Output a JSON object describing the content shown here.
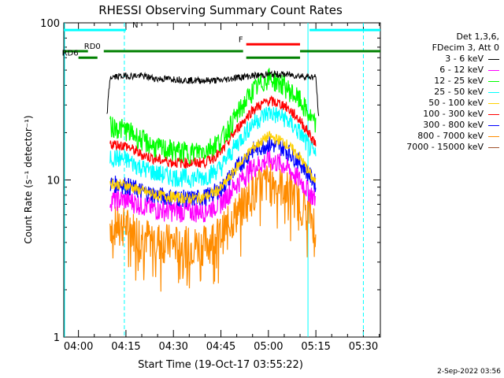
{
  "chart_data": {
    "type": "line",
    "title": "RHESSI Observing Summary Count Rates",
    "xlabel": "Start Time (19-Oct-17 03:55:22)",
    "ylabel": "Count Rate (s⁻¹ detector⁻¹)",
    "y_scale": "log",
    "ylim": [
      1,
      100
    ],
    "x_ticks": [
      "04:00",
      "04:15",
      "04:30",
      "04:45",
      "05:00",
      "05:15",
      "05:30"
    ],
    "y_ticks": [
      "1",
      "10",
      "100"
    ],
    "x_range": [
      "03:55:22",
      "05:35:22"
    ],
    "legend_header": [
      "Det 1,3,6,",
      "FDecim 3, Att 0"
    ],
    "legend_placement": "right",
    "series": [
      {
        "name": "3 - 6 keV",
        "color": "#000000",
        "points": [
          [
            "04:09",
            26
          ],
          [
            "04:10",
            45
          ],
          [
            "04:15",
            46
          ],
          [
            "04:20",
            46
          ],
          [
            "04:25",
            44
          ],
          [
            "04:30",
            44
          ],
          [
            "04:35",
            43
          ],
          [
            "04:40",
            43
          ],
          [
            "04:45",
            43
          ],
          [
            "04:50",
            45
          ],
          [
            "04:55",
            46
          ],
          [
            "05:00",
            47
          ],
          [
            "05:05",
            47
          ],
          [
            "05:10",
            46
          ],
          [
            "05:15",
            45
          ],
          [
            "05:16",
            23
          ]
        ]
      },
      {
        "name": "6 - 12 keV",
        "color": "#ff00ff",
        "points": [
          [
            "04:10",
            7.5
          ],
          [
            "04:15",
            7.5
          ],
          [
            "04:20",
            7.0
          ],
          [
            "04:25",
            6.5
          ],
          [
            "04:30",
            6.4
          ],
          [
            "04:35",
            6.3
          ],
          [
            "04:40",
            6.4
          ],
          [
            "04:45",
            7.2
          ],
          [
            "04:50",
            9.5
          ],
          [
            "04:55",
            12
          ],
          [
            "05:00",
            13.5
          ],
          [
            "05:05",
            12.5
          ],
          [
            "05:10",
            10
          ],
          [
            "05:15",
            7.5
          ]
        ]
      },
      {
        "name": "12 - 25 keV",
        "color": "#00ff00",
        "points": [
          [
            "04:10",
            22
          ],
          [
            "04:15",
            21
          ],
          [
            "04:20",
            18
          ],
          [
            "04:25",
            16
          ],
          [
            "04:30",
            15.5
          ],
          [
            "04:35",
            15
          ],
          [
            "04:40",
            15.5
          ],
          [
            "04:45",
            18
          ],
          [
            "04:50",
            26
          ],
          [
            "04:55",
            37
          ],
          [
            "05:00",
            45
          ],
          [
            "05:05",
            40
          ],
          [
            "05:10",
            32
          ],
          [
            "05:15",
            22
          ]
        ]
      },
      {
        "name": "25 - 50 keV",
        "color": "#00ffff",
        "points": [
          [
            "04:10",
            14
          ],
          [
            "04:15",
            13.5
          ],
          [
            "04:20",
            12
          ],
          [
            "04:25",
            11
          ],
          [
            "04:30",
            10.5
          ],
          [
            "04:35",
            10.3
          ],
          [
            "04:40",
            10.5
          ],
          [
            "04:45",
            12
          ],
          [
            "04:50",
            17
          ],
          [
            "04:55",
            23
          ],
          [
            "05:00",
            27
          ],
          [
            "05:05",
            25
          ],
          [
            "05:10",
            20
          ],
          [
            "05:15",
            14
          ]
        ]
      },
      {
        "name": "50 - 100 keV",
        "color": "#ffd000",
        "points": [
          [
            "04:10",
            9.5
          ],
          [
            "04:15",
            9.3
          ],
          [
            "04:20",
            8.5
          ],
          [
            "04:25",
            8
          ],
          [
            "04:30",
            7.8
          ],
          [
            "04:35",
            7.6
          ],
          [
            "04:40",
            7.8
          ],
          [
            "04:45",
            8.8
          ],
          [
            "04:50",
            12
          ],
          [
            "04:55",
            16
          ],
          [
            "05:00",
            19
          ],
          [
            "05:05",
            17.5
          ],
          [
            "05:10",
            14
          ],
          [
            "05:15",
            9.5
          ]
        ]
      },
      {
        "name": "100 - 300 keV",
        "color": "#ff0000",
        "points": [
          [
            "04:10",
            17
          ],
          [
            "04:15",
            16.5
          ],
          [
            "04:20",
            14.5
          ],
          [
            "04:25",
            13.5
          ],
          [
            "04:30",
            13
          ],
          [
            "04:35",
            12.8
          ],
          [
            "04:40",
            13
          ],
          [
            "04:45",
            15
          ],
          [
            "04:50",
            21
          ],
          [
            "04:55",
            28
          ],
          [
            "05:00",
            32
          ],
          [
            "05:05",
            30
          ],
          [
            "05:10",
            24
          ],
          [
            "05:15",
            17
          ]
        ]
      },
      {
        "name": "300 - 800 keV",
        "color": "#0000ff",
        "points": [
          [
            "04:10",
            9.5
          ],
          [
            "04:15",
            9.3
          ],
          [
            "04:20",
            8.5
          ],
          [
            "04:25",
            8
          ],
          [
            "04:30",
            7.8
          ],
          [
            "04:35",
            7.6
          ],
          [
            "04:40",
            7.8
          ],
          [
            "04:45",
            8.8
          ],
          [
            "04:50",
            12
          ],
          [
            "04:55",
            15.5
          ],
          [
            "05:00",
            17
          ],
          [
            "05:05",
            16
          ],
          [
            "05:10",
            13
          ],
          [
            "05:15",
            9.5
          ]
        ]
      },
      {
        "name": "800 - 7000 keV",
        "color": "#ff8c00",
        "points": [
          [
            "04:10",
            5.3
          ],
          [
            "04:15",
            5.2
          ],
          [
            "04:20",
            4.6
          ],
          [
            "04:25",
            4.2
          ],
          [
            "04:30",
            4.0
          ],
          [
            "04:35",
            3.9
          ],
          [
            "04:40",
            4.0
          ],
          [
            "04:45",
            4.6
          ],
          [
            "04:50",
            6.3
          ],
          [
            "04:55",
            8.5
          ],
          [
            "05:00",
            10
          ],
          [
            "05:05",
            9.2
          ],
          [
            "05:10",
            7.5
          ],
          [
            "05:15",
            5.3
          ]
        ]
      },
      {
        "name": "7000 - 15000 keV",
        "color": "#a0522d",
        "points": []
      }
    ],
    "bars": [
      {
        "label": "N",
        "color": "#00ffff",
        "y": 90,
        "segments": [
          [
            "03:55:22",
            "04:15"
          ],
          [
            "05:13",
            "05:35:22"
          ]
        ]
      },
      {
        "label": "F",
        "color": "#ff0000",
        "y": 73,
        "segments": [
          [
            "04:53",
            "05:10"
          ]
        ]
      },
      {
        "label": "RD0",
        "color": "#008000",
        "y": 66,
        "segments": [
          [
            "03:55:22",
            "04:03"
          ],
          [
            "04:08",
            "04:52"
          ],
          [
            "05:10",
            "05:35:22"
          ]
        ]
      },
      {
        "label": "RD6",
        "color": "#008000",
        "y": 60,
        "segments": [
          [
            "04:00",
            "04:06"
          ],
          [
            "04:53",
            "05:10"
          ]
        ]
      }
    ],
    "vlines": [
      {
        "time": "04:14:30",
        "color": "#00ffff",
        "style": "dashed"
      },
      {
        "time": "05:12:30",
        "color": "#00ffff",
        "style": "solid"
      },
      {
        "time": "05:30",
        "color": "#00ffff",
        "style": "dashed"
      }
    ]
  },
  "footer": {
    "datestamp": "2-Sep-2022 03:56"
  }
}
